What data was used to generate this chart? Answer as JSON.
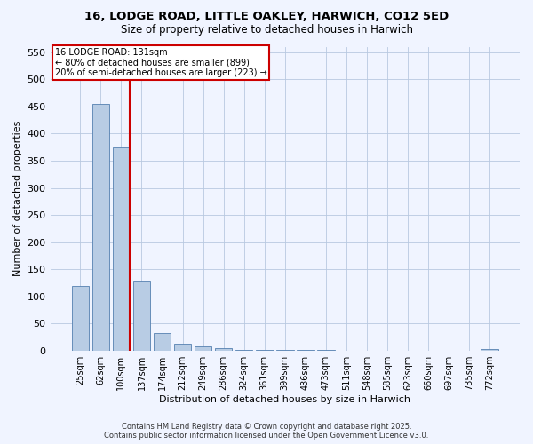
{
  "title": "16, LODGE ROAD, LITTLE OAKLEY, HARWICH, CO12 5ED",
  "subtitle": "Size of property relative to detached houses in Harwich",
  "xlabel": "Distribution of detached houses by size in Harwich",
  "ylabel": "Number of detached properties",
  "categories": [
    "25sqm",
    "62sqm",
    "100sqm",
    "137sqm",
    "174sqm",
    "212sqm",
    "249sqm",
    "286sqm",
    "324sqm",
    "361sqm",
    "399sqm",
    "436sqm",
    "473sqm",
    "511sqm",
    "548sqm",
    "585sqm",
    "623sqm",
    "660sqm",
    "697sqm",
    "735sqm",
    "772sqm"
  ],
  "values": [
    120,
    455,
    375,
    128,
    33,
    13,
    8,
    5,
    2,
    1,
    1,
    1,
    1,
    0,
    0,
    0,
    0,
    0,
    0,
    0,
    3
  ],
  "bar_color": "#b8cce4",
  "bar_edge_color": "#5580b0",
  "vline_x_index": 3,
  "vline_color": "#cc0000",
  "annotation_title": "16 LODGE ROAD: 131sqm",
  "annotation_line1": "← 80% of detached houses are smaller (899)",
  "annotation_line2": "20% of semi-detached houses are larger (223) →",
  "annotation_box_color": "#cc0000",
  "ylim": [
    0,
    560
  ],
  "yticks": [
    0,
    50,
    100,
    150,
    200,
    250,
    300,
    350,
    400,
    450,
    500,
    550
  ],
  "footer_line1": "Contains HM Land Registry data © Crown copyright and database right 2025.",
  "footer_line2": "Contains public sector information licensed under the Open Government Licence v3.0.",
  "background_color": "#f0f4ff",
  "grid_color": "#b8c8e0"
}
